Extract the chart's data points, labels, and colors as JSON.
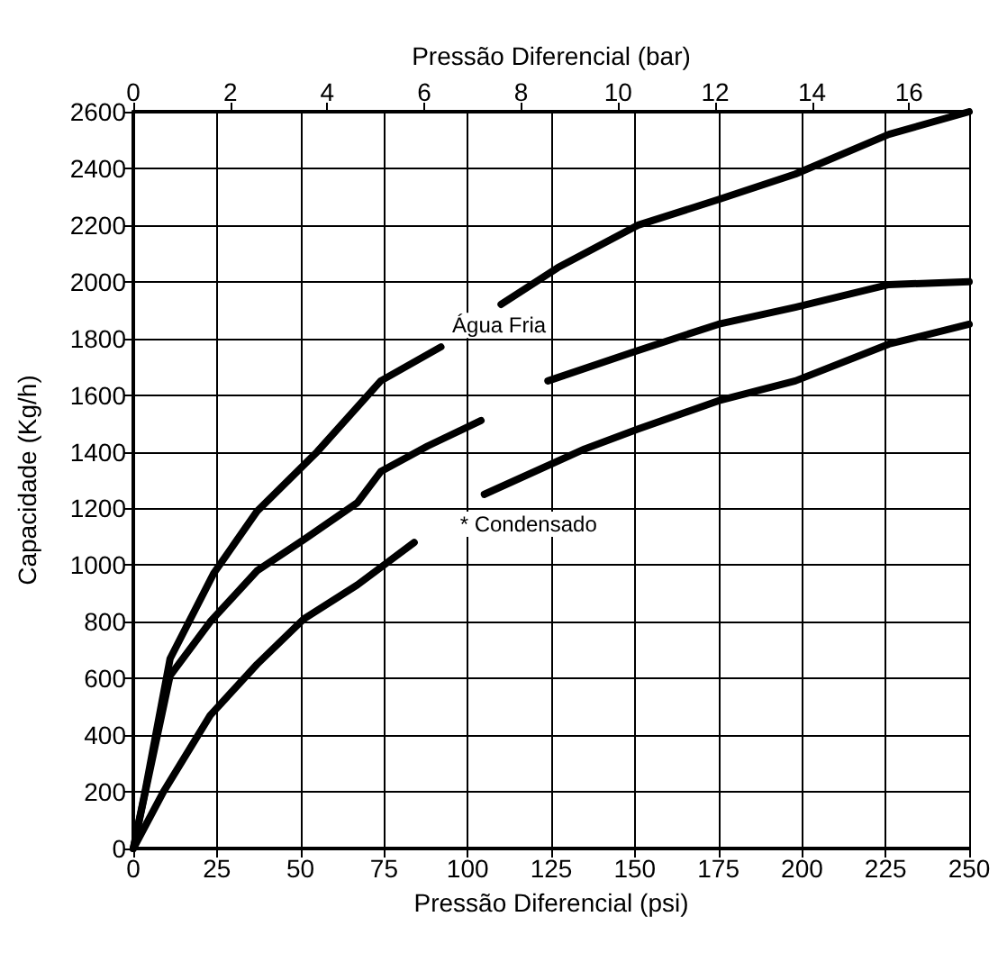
{
  "chart_data": {
    "type": "line",
    "xlabel": "Pressão Diferencial (psi)",
    "x2label": "Pressão Diferencial (bar)",
    "ylabel": "Capacidade (Kg/h)",
    "xlim": [
      0,
      250
    ],
    "xticks": [
      0,
      25,
      50,
      75,
      100,
      125,
      150,
      175,
      200,
      225,
      250
    ],
    "x2lim": [
      0,
      17.24
    ],
    "x2ticks": [
      0,
      2,
      4,
      6,
      8,
      10,
      12,
      14,
      16
    ],
    "ylim": [
      0,
      2600
    ],
    "yticks": [
      0,
      200,
      400,
      600,
      800,
      1000,
      1200,
      1400,
      1600,
      1800,
      2000,
      2200,
      2400,
      2600
    ],
    "grid": true,
    "marker": "none",
    "line_style": "solid",
    "series": [
      {
        "color": "#000000",
        "x": [
          0,
          3.5,
          11,
          24,
          37,
          55,
          74,
          92,
          100,
          110,
          127,
          151,
          175,
          198,
          226,
          250
        ],
        "values": [
          0,
          200,
          670,
          970,
          1190,
          1400,
          1650,
          1770,
          null,
          1920,
          2050,
          2200,
          2290,
          2380,
          2520,
          2600
        ]
      },
      {
        "color": "#000000",
        "x": [
          0,
          11,
          23,
          37,
          51,
          67,
          74,
          88,
          104,
          114,
          124,
          149,
          175,
          198,
          226,
          250
        ],
        "values": [
          0,
          610,
          800,
          980,
          1090,
          1220,
          1330,
          1420,
          1510,
          null,
          1650,
          1750,
          1850,
          1910,
          1990,
          2000
        ]
      },
      {
        "color": "#000000",
        "x": [
          0,
          9,
          23,
          37,
          51,
          67,
          84,
          94,
          105,
          135,
          151,
          175,
          198,
          226,
          250
        ],
        "values": [
          0,
          200,
          470,
          650,
          810,
          930,
          1080,
          null,
          1250,
          1410,
          1480,
          1580,
          1650,
          1780,
          1850
        ]
      }
    ],
    "annotations": [
      "Água Fria",
      "* Condensado"
    ]
  }
}
